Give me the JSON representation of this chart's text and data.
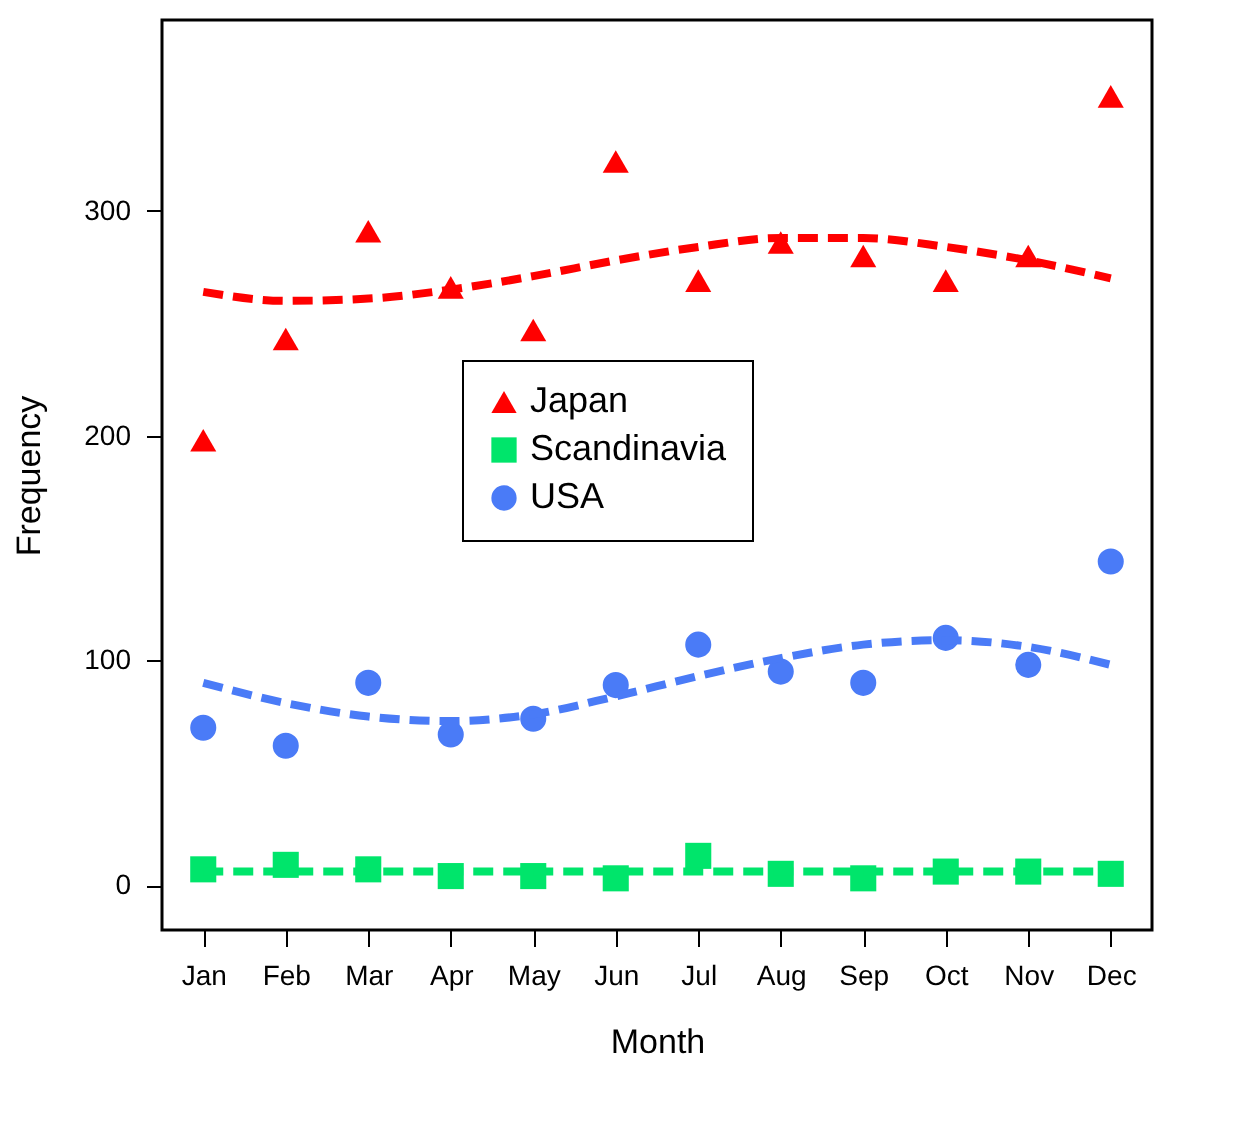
{
  "chart_data": {
    "type": "scatter",
    "xlabel": "Month",
    "ylabel": "Frequency",
    "categories": [
      "Jan",
      "Feb",
      "Mar",
      "Apr",
      "May",
      "Jun",
      "Jul",
      "Aug",
      "Sep",
      "Oct",
      "Nov",
      "Dec"
    ],
    "series": [
      {
        "name": "Japan",
        "marker": "triangle",
        "color": "#ff0000",
        "values": [
          198,
          243,
          291,
          266,
          247,
          322,
          269,
          286,
          280,
          269,
          280,
          351
        ]
      },
      {
        "name": "Scandinavia",
        "marker": "square",
        "color": "#00e56b",
        "values": [
          7,
          9,
          7,
          4,
          4,
          3,
          13,
          5,
          3,
          6,
          6,
          5
        ]
      },
      {
        "name": "USA",
        "marker": "circle",
        "color": "#4a7bf7",
        "values": [
          70,
          62,
          90,
          67,
          74,
          89,
          107,
          95,
          90,
          110,
          98,
          144
        ]
      },
      {
        "type": "line",
        "line_style": "dashed",
        "color": "#ff0000",
        "values": [
          264,
          260,
          261,
          265,
          271,
          278,
          284,
          288,
          288,
          284,
          278,
          270
        ]
      },
      {
        "type": "line",
        "line_style": "dashed",
        "color": "#00e56b",
        "values": [
          6,
          6,
          6,
          6,
          6,
          6,
          6,
          6,
          6,
          6,
          6,
          6
        ]
      },
      {
        "type": "line",
        "line_style": "dashed",
        "color": "#4a7bf7",
        "values": [
          90,
          81,
          75,
          73,
          76,
          84,
          93,
          101,
          107,
          109,
          106,
          98
        ]
      }
    ],
    "ylim": [
      -20,
      385
    ],
    "yticks": [
      0,
      100,
      200,
      300
    ],
    "grid": false,
    "legend": "center"
  }
}
